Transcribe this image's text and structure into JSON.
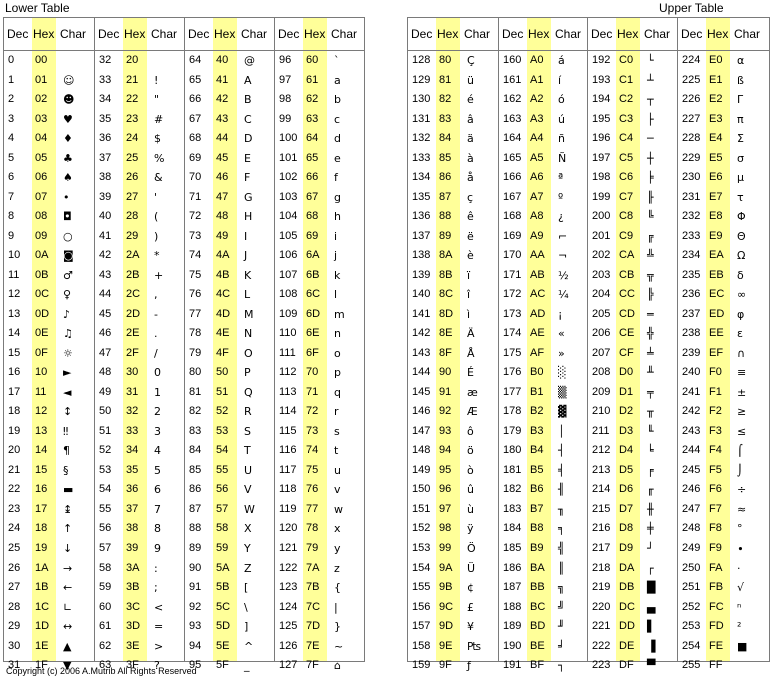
{
  "lower_title": "Lower Table",
  "upper_title": "Upper Table",
  "copyright": "Copyright (c) 2006 A.Mutrib All Rights Reserved",
  "headers": {
    "dec": "Dec",
    "hex": "Hex",
    "char": "Char"
  },
  "highlight_color": "#ffff99",
  "lower_groups": [
    {
      "rows": [
        [
          "0",
          "00",
          ""
        ],
        [
          "1",
          "01",
          "☺"
        ],
        [
          "2",
          "02",
          "☻"
        ],
        [
          "3",
          "03",
          "♥"
        ],
        [
          "4",
          "04",
          "♦"
        ],
        [
          "5",
          "05",
          "♣"
        ],
        [
          "6",
          "06",
          "♠"
        ],
        [
          "7",
          "07",
          "•"
        ],
        [
          "8",
          "08",
          "◘"
        ],
        [
          "9",
          "09",
          "○"
        ],
        [
          "10",
          "0A",
          "◙"
        ],
        [
          "11",
          "0B",
          "♂"
        ],
        [
          "12",
          "0C",
          "♀"
        ],
        [
          "13",
          "0D",
          "♪"
        ],
        [
          "14",
          "0E",
          "♫"
        ],
        [
          "15",
          "0F",
          "☼"
        ],
        [
          "16",
          "10",
          "►"
        ],
        [
          "17",
          "11",
          "◄"
        ],
        [
          "18",
          "12",
          "↕"
        ],
        [
          "19",
          "13",
          "‼"
        ],
        [
          "20",
          "14",
          "¶"
        ],
        [
          "21",
          "15",
          "§"
        ],
        [
          "22",
          "16",
          "▬"
        ],
        [
          "23",
          "17",
          "↨"
        ],
        [
          "24",
          "18",
          "↑"
        ],
        [
          "25",
          "19",
          "↓"
        ],
        [
          "26",
          "1A",
          "→"
        ],
        [
          "27",
          "1B",
          "←"
        ],
        [
          "28",
          "1C",
          "∟"
        ],
        [
          "29",
          "1D",
          "↔"
        ],
        [
          "30",
          "1E",
          "▲"
        ],
        [
          "31",
          "1F",
          "▼"
        ]
      ]
    },
    {
      "rows": [
        [
          "32",
          "20",
          ""
        ],
        [
          "33",
          "21",
          "!"
        ],
        [
          "34",
          "22",
          "\""
        ],
        [
          "35",
          "23",
          "#"
        ],
        [
          "36",
          "24",
          "$"
        ],
        [
          "37",
          "25",
          "%"
        ],
        [
          "38",
          "26",
          "&"
        ],
        [
          "39",
          "27",
          "'"
        ],
        [
          "40",
          "28",
          "("
        ],
        [
          "41",
          "29",
          ")"
        ],
        [
          "42",
          "2A",
          "*"
        ],
        [
          "43",
          "2B",
          "+"
        ],
        [
          "44",
          "2C",
          ","
        ],
        [
          "45",
          "2D",
          "-"
        ],
        [
          "46",
          "2E",
          "."
        ],
        [
          "47",
          "2F",
          "/"
        ],
        [
          "48",
          "30",
          "0"
        ],
        [
          "49",
          "31",
          "1"
        ],
        [
          "50",
          "32",
          "2"
        ],
        [
          "51",
          "33",
          "3"
        ],
        [
          "52",
          "34",
          "4"
        ],
        [
          "53",
          "35",
          "5"
        ],
        [
          "54",
          "36",
          "6"
        ],
        [
          "55",
          "37",
          "7"
        ],
        [
          "56",
          "38",
          "8"
        ],
        [
          "57",
          "39",
          "9"
        ],
        [
          "58",
          "3A",
          ":"
        ],
        [
          "59",
          "3B",
          ";"
        ],
        [
          "60",
          "3C",
          "<"
        ],
        [
          "61",
          "3D",
          "="
        ],
        [
          "62",
          "3E",
          ">"
        ],
        [
          "63",
          "3F",
          "?"
        ]
      ]
    },
    {
      "rows": [
        [
          "64",
          "40",
          "@"
        ],
        [
          "65",
          "41",
          "A"
        ],
        [
          "66",
          "42",
          "B"
        ],
        [
          "67",
          "43",
          "C"
        ],
        [
          "68",
          "44",
          "D"
        ],
        [
          "69",
          "45",
          "E"
        ],
        [
          "70",
          "46",
          "F"
        ],
        [
          "71",
          "47",
          "G"
        ],
        [
          "72",
          "48",
          "H"
        ],
        [
          "73",
          "49",
          "I"
        ],
        [
          "74",
          "4A",
          "J"
        ],
        [
          "75",
          "4B",
          "K"
        ],
        [
          "76",
          "4C",
          "L"
        ],
        [
          "77",
          "4D",
          "M"
        ],
        [
          "78",
          "4E",
          "N"
        ],
        [
          "79",
          "4F",
          "O"
        ],
        [
          "80",
          "50",
          "P"
        ],
        [
          "81",
          "51",
          "Q"
        ],
        [
          "82",
          "52",
          "R"
        ],
        [
          "83",
          "53",
          "S"
        ],
        [
          "84",
          "54",
          "T"
        ],
        [
          "85",
          "55",
          "U"
        ],
        [
          "86",
          "56",
          "V"
        ],
        [
          "87",
          "57",
          "W"
        ],
        [
          "88",
          "58",
          "X"
        ],
        [
          "89",
          "59",
          "Y"
        ],
        [
          "90",
          "5A",
          "Z"
        ],
        [
          "91",
          "5B",
          "["
        ],
        [
          "92",
          "5C",
          "\\"
        ],
        [
          "93",
          "5D",
          "]"
        ],
        [
          "94",
          "5E",
          "^"
        ],
        [
          "95",
          "5F",
          "_"
        ]
      ]
    },
    {
      "rows": [
        [
          "96",
          "60",
          "`"
        ],
        [
          "97",
          "61",
          "a"
        ],
        [
          "98",
          "62",
          "b"
        ],
        [
          "99",
          "63",
          "c"
        ],
        [
          "100",
          "64",
          "d"
        ],
        [
          "101",
          "65",
          "e"
        ],
        [
          "102",
          "66",
          "f"
        ],
        [
          "103",
          "67",
          "g"
        ],
        [
          "104",
          "68",
          "h"
        ],
        [
          "105",
          "69",
          "i"
        ],
        [
          "106",
          "6A",
          "j"
        ],
        [
          "107",
          "6B",
          "k"
        ],
        [
          "108",
          "6C",
          "l"
        ],
        [
          "109",
          "6D",
          "m"
        ],
        [
          "110",
          "6E",
          "n"
        ],
        [
          "111",
          "6F",
          "o"
        ],
        [
          "112",
          "70",
          "p"
        ],
        [
          "113",
          "71",
          "q"
        ],
        [
          "114",
          "72",
          "r"
        ],
        [
          "115",
          "73",
          "s"
        ],
        [
          "116",
          "74",
          "t"
        ],
        [
          "117",
          "75",
          "u"
        ],
        [
          "118",
          "76",
          "v"
        ],
        [
          "119",
          "77",
          "w"
        ],
        [
          "120",
          "78",
          "x"
        ],
        [
          "121",
          "79",
          "y"
        ],
        [
          "122",
          "7A",
          "z"
        ],
        [
          "123",
          "7B",
          "{"
        ],
        [
          "124",
          "7C",
          "|"
        ],
        [
          "125",
          "7D",
          "}"
        ],
        [
          "126",
          "7E",
          "~"
        ],
        [
          "127",
          "7F",
          "⌂"
        ]
      ]
    }
  ],
  "upper_groups": [
    {
      "rows": [
        [
          "128",
          "80",
          "Ç"
        ],
        [
          "129",
          "81",
          "ü"
        ],
        [
          "130",
          "82",
          "é"
        ],
        [
          "131",
          "83",
          "â"
        ],
        [
          "132",
          "84",
          "ä"
        ],
        [
          "133",
          "85",
          "à"
        ],
        [
          "134",
          "86",
          "å"
        ],
        [
          "135",
          "87",
          "ç"
        ],
        [
          "136",
          "88",
          "ê"
        ],
        [
          "137",
          "89",
          "ë"
        ],
        [
          "138",
          "8A",
          "è"
        ],
        [
          "139",
          "8B",
          "ï"
        ],
        [
          "140",
          "8C",
          "î"
        ],
        [
          "141",
          "8D",
          "ì"
        ],
        [
          "142",
          "8E",
          "Ä"
        ],
        [
          "143",
          "8F",
          "Å"
        ],
        [
          "144",
          "90",
          "É"
        ],
        [
          "145",
          "91",
          "æ"
        ],
        [
          "146",
          "92",
          "Æ"
        ],
        [
          "147",
          "93",
          "ô"
        ],
        [
          "148",
          "94",
          "ö"
        ],
        [
          "149",
          "95",
          "ò"
        ],
        [
          "150",
          "96",
          "û"
        ],
        [
          "151",
          "97",
          "ù"
        ],
        [
          "152",
          "98",
          "ÿ"
        ],
        [
          "153",
          "99",
          "Ö"
        ],
        [
          "154",
          "9A",
          "Ü"
        ],
        [
          "155",
          "9B",
          "¢"
        ],
        [
          "156",
          "9C",
          "£"
        ],
        [
          "157",
          "9D",
          "¥"
        ],
        [
          "158",
          "9E",
          "₧"
        ],
        [
          "159",
          "9F",
          "ƒ"
        ]
      ]
    },
    {
      "rows": [
        [
          "160",
          "A0",
          "á"
        ],
        [
          "161",
          "A1",
          "í"
        ],
        [
          "162",
          "A2",
          "ó"
        ],
        [
          "163",
          "A3",
          "ú"
        ],
        [
          "164",
          "A4",
          "ñ"
        ],
        [
          "165",
          "A5",
          "Ñ"
        ],
        [
          "166",
          "A6",
          "ª"
        ],
        [
          "167",
          "A7",
          "º"
        ],
        [
          "168",
          "A8",
          "¿"
        ],
        [
          "169",
          "A9",
          "⌐"
        ],
        [
          "170",
          "AA",
          "¬"
        ],
        [
          "171",
          "AB",
          "½"
        ],
        [
          "172",
          "AC",
          "¼"
        ],
        [
          "173",
          "AD",
          "¡"
        ],
        [
          "174",
          "AE",
          "«"
        ],
        [
          "175",
          "AF",
          "»"
        ],
        [
          "176",
          "B0",
          "░"
        ],
        [
          "177",
          "B1",
          "▒"
        ],
        [
          "178",
          "B2",
          "▓"
        ],
        [
          "179",
          "B3",
          "│"
        ],
        [
          "180",
          "B4",
          "┤"
        ],
        [
          "181",
          "B5",
          "╡"
        ],
        [
          "182",
          "B6",
          "╢"
        ],
        [
          "183",
          "B7",
          "╖"
        ],
        [
          "184",
          "B8",
          "╕"
        ],
        [
          "185",
          "B9",
          "╣"
        ],
        [
          "186",
          "BA",
          "║"
        ],
        [
          "187",
          "BB",
          "╗"
        ],
        [
          "188",
          "BC",
          "╝"
        ],
        [
          "189",
          "BD",
          "╜"
        ],
        [
          "190",
          "BE",
          "╛"
        ],
        [
          "191",
          "BF",
          "┐"
        ]
      ]
    },
    {
      "rows": [
        [
          "192",
          "C0",
          "└"
        ],
        [
          "193",
          "C1",
          "┴"
        ],
        [
          "194",
          "C2",
          "┬"
        ],
        [
          "195",
          "C3",
          "├"
        ],
        [
          "196",
          "C4",
          "─"
        ],
        [
          "197",
          "C5",
          "┼"
        ],
        [
          "198",
          "C6",
          "╞"
        ],
        [
          "199",
          "C7",
          "╟"
        ],
        [
          "200",
          "C8",
          "╚"
        ],
        [
          "201",
          "C9",
          "╔"
        ],
        [
          "202",
          "CA",
          "╩"
        ],
        [
          "203",
          "CB",
          "╦"
        ],
        [
          "204",
          "CC",
          "╠"
        ],
        [
          "205",
          "CD",
          "═"
        ],
        [
          "206",
          "CE",
          "╬"
        ],
        [
          "207",
          "CF",
          "╧"
        ],
        [
          "208",
          "D0",
          "╨"
        ],
        [
          "209",
          "D1",
          "╤"
        ],
        [
          "210",
          "D2",
          "╥"
        ],
        [
          "211",
          "D3",
          "╙"
        ],
        [
          "212",
          "D4",
          "╘"
        ],
        [
          "213",
          "D5",
          "╒"
        ],
        [
          "214",
          "D6",
          "╓"
        ],
        [
          "215",
          "D7",
          "╫"
        ],
        [
          "216",
          "D8",
          "╪"
        ],
        [
          "217",
          "D9",
          "┘"
        ],
        [
          "218",
          "DA",
          "┌"
        ],
        [
          "219",
          "DB",
          "█"
        ],
        [
          "220",
          "DC",
          "▄"
        ],
        [
          "221",
          "DD",
          "▌"
        ],
        [
          "222",
          "DE",
          "▐"
        ],
        [
          "223",
          "DF",
          "▀"
        ]
      ]
    },
    {
      "rows": [
        [
          "224",
          "E0",
          "α"
        ],
        [
          "225",
          "E1",
          "ß"
        ],
        [
          "226",
          "E2",
          "Γ"
        ],
        [
          "227",
          "E3",
          "π"
        ],
        [
          "228",
          "E4",
          "Σ"
        ],
        [
          "229",
          "E5",
          "σ"
        ],
        [
          "230",
          "E6",
          "µ"
        ],
        [
          "231",
          "E7",
          "τ"
        ],
        [
          "232",
          "E8",
          "Φ"
        ],
        [
          "233",
          "E9",
          "Θ"
        ],
        [
          "234",
          "EA",
          "Ω"
        ],
        [
          "235",
          "EB",
          "δ"
        ],
        [
          "236",
          "EC",
          "∞"
        ],
        [
          "237",
          "ED",
          "φ"
        ],
        [
          "238",
          "EE",
          "ε"
        ],
        [
          "239",
          "EF",
          "∩"
        ],
        [
          "240",
          "F0",
          "≡"
        ],
        [
          "241",
          "F1",
          "±"
        ],
        [
          "242",
          "F2",
          "≥"
        ],
        [
          "243",
          "F3",
          "≤"
        ],
        [
          "244",
          "F4",
          "⌠"
        ],
        [
          "245",
          "F5",
          "⌡"
        ],
        [
          "246",
          "F6",
          "÷"
        ],
        [
          "247",
          "F7",
          "≈"
        ],
        [
          "248",
          "F8",
          "°"
        ],
        [
          "249",
          "F9",
          "∙"
        ],
        [
          "250",
          "FA",
          "·"
        ],
        [
          "251",
          "FB",
          "√"
        ],
        [
          "252",
          "FC",
          "ⁿ"
        ],
        [
          "253",
          "FD",
          "²"
        ],
        [
          "254",
          "FE",
          "■"
        ],
        [
          "255",
          "FF",
          ""
        ]
      ]
    }
  ]
}
